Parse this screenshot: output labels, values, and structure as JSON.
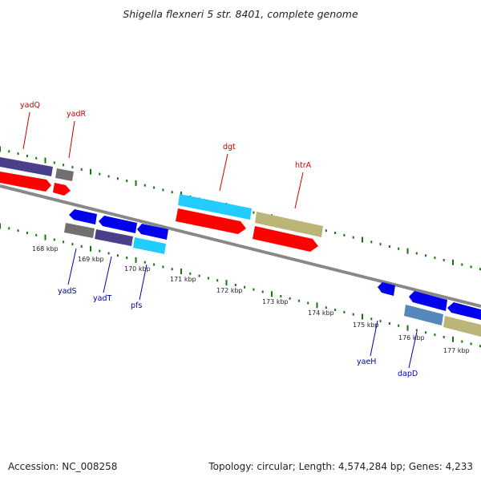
{
  "title": "Shigella flexneri 5 str. 8401, complete genome",
  "accession": "Accession: NC_008258",
  "topology": "Topology: circular; Length: 4,574,284 bp; Genes: 4,233",
  "colors": {
    "forward_label": "#cc0000",
    "reverse_label": "#0000aa",
    "tick": "#117711",
    "backbone": "#888888",
    "red": "#ff0000",
    "blue": "#0000ee",
    "purple": "#4a3f8a",
    "gray": "#707070",
    "cyan": "#22ccff",
    "olive": "#bbb577",
    "steel": "#5588bb"
  },
  "chart_data": {
    "type": "genome-map",
    "kbp_labels": [
      "168 kbp",
      "169 kbp",
      "170 kbp",
      "171 kbp",
      "172 kbp",
      "173 kbp",
      "174 kbp",
      "175 kbp",
      "176 kbp",
      "177 kbp"
    ],
    "forward_gene_labels": [
      "yadQ",
      "yadR",
      "dgt",
      "htrA"
    ],
    "reverse_gene_labels": [
      "yadS",
      "yadT",
      "pfs",
      "yaeH",
      "dapD"
    ]
  }
}
